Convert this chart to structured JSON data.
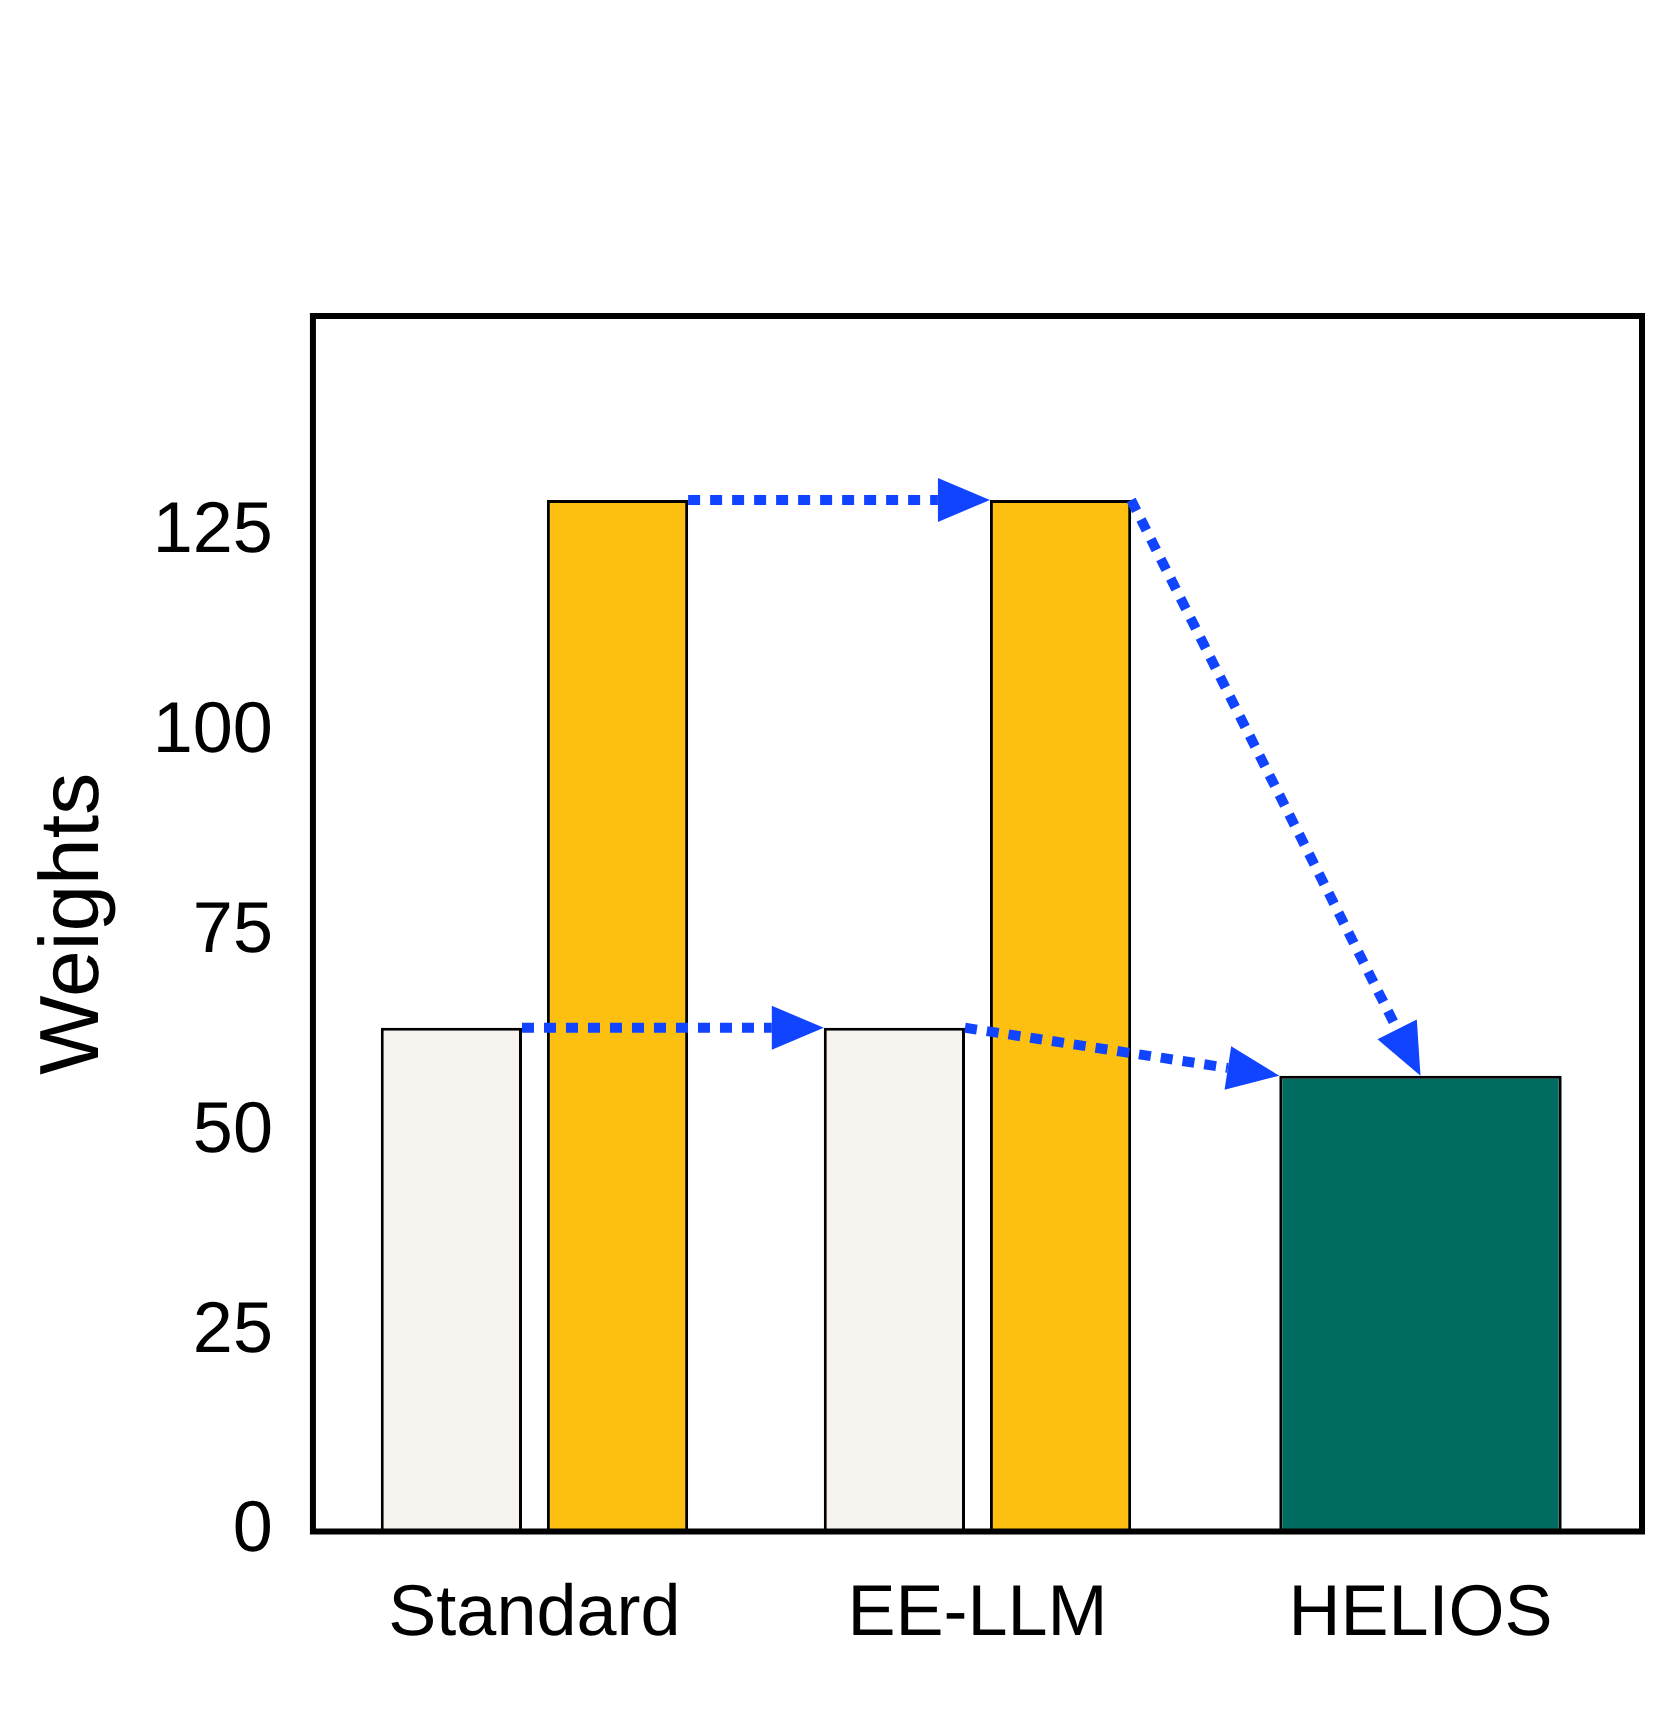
{
  "chart_data": {
    "type": "bar",
    "ylabel": "Weights",
    "categories": [
      "Standard",
      "EE-LLM",
      "HELIOS"
    ],
    "series": [
      {
        "color": "#f7f4ef",
        "values": [
          63,
          63,
          null
        ]
      },
      {
        "color": "#fdc010",
        "values": [
          129,
          129,
          null
        ]
      },
      {
        "color": "#006b61",
        "values": [
          null,
          null,
          57
        ]
      }
    ],
    "ylim": [
      0,
      152
    ],
    "yticks": [
      0,
      25,
      50,
      75,
      100,
      125
    ],
    "grid": false,
    "legend": false
  }
}
